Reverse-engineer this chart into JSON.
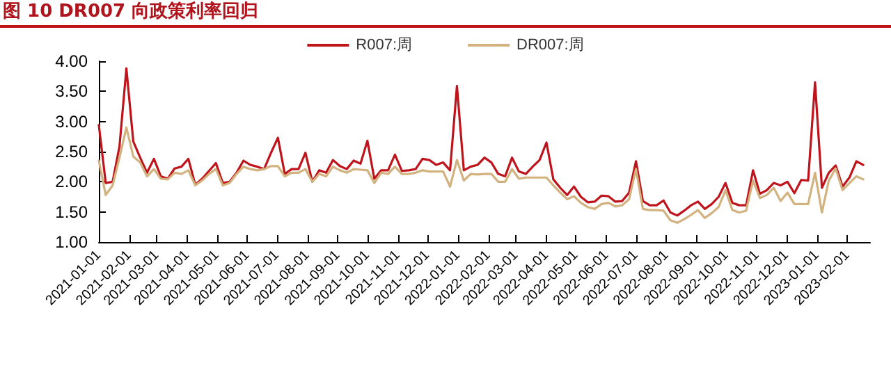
{
  "chart_data": {
    "type": "line",
    "title": "图 10 DR007 向政策利率回归",
    "x": [
      "2021-01-01",
      "2021-01-08",
      "2021-01-15",
      "2021-01-22",
      "2021-01-29",
      "2021-02-05",
      "2021-02-12",
      "2021-02-19",
      "2021-02-26",
      "2021-03-05",
      "2021-03-12",
      "2021-03-19",
      "2021-03-26",
      "2021-04-02",
      "2021-04-09",
      "2021-04-16",
      "2021-04-23",
      "2021-04-30",
      "2021-05-07",
      "2021-05-14",
      "2021-05-21",
      "2021-05-28",
      "2021-06-04",
      "2021-06-11",
      "2021-06-18",
      "2021-06-25",
      "2021-07-02",
      "2021-07-09",
      "2021-07-16",
      "2021-07-23",
      "2021-07-30",
      "2021-08-06",
      "2021-08-13",
      "2021-08-20",
      "2021-08-27",
      "2021-09-03",
      "2021-09-10",
      "2021-09-17",
      "2021-09-24",
      "2021-10-01",
      "2021-10-08",
      "2021-10-15",
      "2021-10-22",
      "2021-10-29",
      "2021-11-05",
      "2021-11-12",
      "2021-11-19",
      "2021-11-26",
      "2021-12-03",
      "2021-12-10",
      "2021-12-17",
      "2021-12-24",
      "2021-12-31",
      "2022-01-07",
      "2022-01-14",
      "2022-01-21",
      "2022-01-28",
      "2022-02-04",
      "2022-02-11",
      "2022-02-18",
      "2022-02-25",
      "2022-03-04",
      "2022-03-11",
      "2022-03-18",
      "2022-03-25",
      "2022-04-01",
      "2022-04-08",
      "2022-04-15",
      "2022-04-22",
      "2022-04-29",
      "2022-05-06",
      "2022-05-13",
      "2022-05-20",
      "2022-05-27",
      "2022-06-03",
      "2022-06-10",
      "2022-06-17",
      "2022-06-24",
      "2022-07-01",
      "2022-07-08",
      "2022-07-15",
      "2022-07-22",
      "2022-07-29",
      "2022-08-05",
      "2022-08-12",
      "2022-08-19",
      "2022-08-26",
      "2022-09-02",
      "2022-09-09",
      "2022-09-16",
      "2022-09-23",
      "2022-09-30",
      "2022-10-07",
      "2022-10-14",
      "2022-10-21",
      "2022-10-28",
      "2022-11-04",
      "2022-11-11",
      "2022-11-18",
      "2022-11-25",
      "2022-12-02",
      "2022-12-09",
      "2022-12-16",
      "2022-12-23",
      "2022-12-30",
      "2023-01-06",
      "2023-01-13",
      "2023-01-20",
      "2023-01-27",
      "2023-02-03",
      "2023-02-10",
      "2023-02-17"
    ],
    "series": [
      {
        "name": "R007:周",
        "color": "#c0141c",
        "values": [
          2.94,
          1.98,
          2.0,
          2.59,
          3.88,
          2.67,
          2.4,
          2.15,
          2.38,
          2.09,
          2.05,
          2.22,
          2.25,
          2.38,
          1.95,
          2.05,
          2.18,
          2.31,
          1.98,
          2.0,
          2.15,
          2.35,
          2.28,
          2.25,
          2.21,
          2.48,
          2.73,
          2.13,
          2.21,
          2.21,
          2.48,
          2.0,
          2.19,
          2.15,
          2.36,
          2.26,
          2.21,
          2.35,
          2.3,
          2.68,
          2.05,
          2.19,
          2.19,
          2.45,
          2.18,
          2.19,
          2.21,
          2.38,
          2.36,
          2.28,
          2.32,
          2.19,
          3.59,
          2.19,
          2.25,
          2.28,
          2.4,
          2.32,
          2.13,
          2.09,
          2.4,
          2.17,
          2.13,
          2.25,
          2.36,
          2.65,
          2.04,
          1.9,
          1.78,
          1.92,
          1.75,
          1.66,
          1.67,
          1.77,
          1.76,
          1.67,
          1.68,
          1.82,
          2.34,
          1.68,
          1.61,
          1.61,
          1.69,
          1.49,
          1.44,
          1.52,
          1.61,
          1.67,
          1.55,
          1.63,
          1.75,
          1.98,
          1.65,
          1.61,
          1.61,
          2.19,
          1.8,
          1.86,
          1.98,
          1.94,
          2.0,
          1.81,
          2.03,
          2.02,
          3.65,
          1.9,
          2.15,
          2.27,
          1.92,
          2.07,
          2.34,
          2.28
        ]
      },
      {
        "name": "DR007:周",
        "color": "#d2b27e",
        "values": [
          2.35,
          1.78,
          1.94,
          2.4,
          2.9,
          2.42,
          2.32,
          2.09,
          2.21,
          2.05,
          2.04,
          2.15,
          2.13,
          2.19,
          1.94,
          2.02,
          2.13,
          2.21,
          1.94,
          1.98,
          2.13,
          2.25,
          2.21,
          2.19,
          2.21,
          2.26,
          2.26,
          2.09,
          2.15,
          2.15,
          2.21,
          2.0,
          2.13,
          2.09,
          2.25,
          2.19,
          2.15,
          2.21,
          2.2,
          2.19,
          1.98,
          2.15,
          2.13,
          2.25,
          2.13,
          2.13,
          2.15,
          2.19,
          2.17,
          2.17,
          2.17,
          1.92,
          2.36,
          2.02,
          2.13,
          2.12,
          2.13,
          2.13,
          2.0,
          2.0,
          2.21,
          2.05,
          2.07,
          2.07,
          2.07,
          2.07,
          1.94,
          1.82,
          1.71,
          1.76,
          1.65,
          1.58,
          1.55,
          1.63,
          1.65,
          1.59,
          1.61,
          1.71,
          2.21,
          1.55,
          1.53,
          1.53,
          1.52,
          1.36,
          1.32,
          1.38,
          1.45,
          1.53,
          1.4,
          1.48,
          1.58,
          1.86,
          1.53,
          1.49,
          1.52,
          2.02,
          1.73,
          1.78,
          1.9,
          1.68,
          1.82,
          1.63,
          1.63,
          1.63,
          2.15,
          1.49,
          2.02,
          2.22,
          1.86,
          1.98,
          2.09,
          2.04
        ]
      }
    ],
    "xlim": [
      "2021-01-01",
      "2023-02-24"
    ],
    "xticks": [
      "2021-01-01",
      "2021-02-01",
      "2021-03-01",
      "2021-04-01",
      "2021-05-01",
      "2021-06-01",
      "2021-07-01",
      "2021-08-01",
      "2021-09-01",
      "2021-10-01",
      "2021-11-01",
      "2021-12-01",
      "2022-01-01",
      "2022-02-01",
      "2022-03-01",
      "2022-04-01",
      "2022-05-01",
      "2022-06-01",
      "2022-07-01",
      "2022-08-01",
      "2022-09-01",
      "2022-10-01",
      "2022-11-01",
      "2022-12-01",
      "2023-01-01",
      "2023-02-01"
    ],
    "ylim": [
      1,
      4
    ],
    "yticks": [
      {
        "value": 1,
        "label": "1.00"
      },
      {
        "value": 1.5,
        "label": "1.50"
      },
      {
        "value": 2,
        "label": "2.00"
      },
      {
        "value": 2.5,
        "label": "2.50"
      },
      {
        "value": 3,
        "label": "3.00"
      },
      {
        "value": 3.5,
        "label": "3.50"
      },
      {
        "value": 4,
        "label": "4.00"
      }
    ],
    "grid": false,
    "legend": "top",
    "marker": "none",
    "line_style": "solid"
  }
}
